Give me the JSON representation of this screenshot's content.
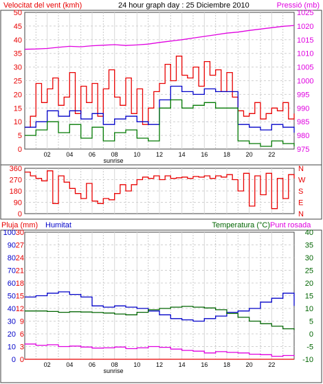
{
  "colors": {
    "wind": "#e80000",
    "gust": "#e80000",
    "wind_avg": "#0000c8",
    "wind_low": "#007800",
    "pressure": "#e000e0",
    "direction": "#e80000",
    "humidity": "#0000c8",
    "temperature": "#006400",
    "dewpoint": "#e000e0",
    "rain": "#e80000",
    "grid": "#c8c8c8",
    "frame": "#404040"
  },
  "header": {
    "wind_title": "Velocitat del vent (kmh)",
    "graph_title": "24 hour graph day : 25 Diciembre 2010",
    "pressure_title": "Pressió (mb)",
    "rain_title": "Pluja (mm)",
    "humidity_title": "Humitat",
    "temp_title": "Temperatura (°C)",
    "dew_title": "Punt rosada"
  },
  "chart_data": [
    {
      "type": "line",
      "id": "wind",
      "x_ticks": [
        "02",
        "04",
        "06",
        "08",
        "10",
        "12",
        "14",
        "16",
        "18",
        "20",
        "22"
      ],
      "sunrise_label": "sunrise",
      "sunrise_hour": 7.9,
      "ylim_left": [
        0,
        50
      ],
      "yticks_left": [
        0,
        5,
        10,
        15,
        20,
        25,
        30,
        35,
        40,
        45,
        50
      ],
      "ylim_right": [
        975,
        1025
      ],
      "yticks_right": [
        975,
        980,
        985,
        990,
        995,
        1000,
        1005,
        1010,
        1015,
        1020,
        1025
      ],
      "series": [
        {
          "key": "gust",
          "axis": "left",
          "hours": [
            0,
            0.5,
            1,
            1.5,
            2,
            2.5,
            3,
            3.5,
            4,
            4.5,
            5,
            5.5,
            6,
            6.5,
            7,
            7.5,
            8,
            8.5,
            9,
            9.5,
            10,
            10.5,
            11,
            11.5,
            12,
            12.5,
            13,
            13.5,
            14,
            14.5,
            15,
            15.5,
            16,
            16.5,
            17,
            17.5,
            18,
            18.5,
            19,
            19.5,
            20,
            20.5,
            21,
            21.5,
            22,
            22.5,
            23,
            23.5,
            24
          ],
          "values": [
            8,
            12,
            24,
            17,
            22,
            26,
            16,
            19,
            28,
            13,
            23,
            17,
            24,
            12,
            22,
            29,
            19,
            16,
            26,
            13,
            22,
            9,
            15,
            21,
            24,
            31,
            25,
            34,
            27,
            26,
            30,
            23,
            32,
            27,
            29,
            21,
            28,
            19,
            14,
            12,
            13,
            17,
            11,
            13,
            15,
            14,
            17,
            11,
            13
          ]
        },
        {
          "key": "wind_avg",
          "axis": "left",
          "hours": [
            0,
            1,
            2,
            3,
            4,
            5,
            6,
            7,
            8,
            9,
            10,
            11,
            12,
            13,
            14,
            15,
            16,
            17,
            18,
            19,
            20,
            21,
            22,
            23,
            24
          ],
          "values": [
            8,
            10,
            14,
            12,
            14,
            11,
            13,
            9,
            11,
            12,
            10,
            9,
            18,
            23,
            21,
            20,
            22,
            21,
            21,
            9,
            8,
            7,
            9,
            8,
            6
          ]
        },
        {
          "key": "wind_low",
          "axis": "left",
          "hours": [
            0,
            1,
            2,
            3,
            4,
            5,
            6,
            7,
            8,
            9,
            10,
            11,
            12,
            13,
            14,
            15,
            16,
            17,
            18,
            19,
            20,
            21,
            22,
            23,
            24
          ],
          "values": [
            5,
            7,
            10,
            6,
            9,
            4,
            8,
            3,
            6,
            7,
            4,
            3,
            15,
            18,
            15,
            16,
            17,
            15,
            15,
            3,
            2,
            1,
            3,
            2,
            1
          ]
        },
        {
          "key": "pressure",
          "axis": "right",
          "hours": [
            0,
            1,
            2,
            3,
            4,
            5,
            6,
            7,
            8,
            9,
            10,
            11,
            12,
            13,
            14,
            15,
            16,
            17,
            18,
            19,
            20,
            21,
            22,
            23,
            24
          ],
          "values": [
            1011.5,
            1011.6,
            1011.8,
            1012.2,
            1012.6,
            1012.4,
            1012.8,
            1013.0,
            1013.2,
            1012.9,
            1013.1,
            1013.4,
            1014.0,
            1014.5,
            1015.0,
            1015.6,
            1016.2,
            1016.8,
            1017.4,
            1017.8,
            1018.4,
            1018.9,
            1019.4,
            1019.9,
            1020.2
          ]
        }
      ]
    },
    {
      "type": "line",
      "id": "direction",
      "ylim_left": [
        0,
        360
      ],
      "yticks_left": [
        0,
        90,
        180,
        270,
        360
      ],
      "right_labels": [
        "N",
        "W",
        "S",
        "E",
        "N"
      ],
      "series": [
        {
          "key": "direction",
          "hours": [
            0,
            0.5,
            1,
            1.5,
            2,
            2.5,
            3,
            3.5,
            4,
            4.5,
            5,
            5.5,
            6,
            6.5,
            7,
            7.5,
            8,
            8.5,
            9,
            9.5,
            10,
            10.5,
            11,
            11.5,
            12,
            12.5,
            13,
            13.5,
            14,
            14.5,
            15,
            15.5,
            16,
            16.5,
            17,
            17.5,
            18,
            18.5,
            19,
            19.5,
            20,
            20.5,
            21,
            21.5,
            22,
            22.5,
            23,
            23.5,
            24
          ],
          "values": [
            330,
            300,
            280,
            260,
            340,
            80,
            300,
            250,
            200,
            160,
            120,
            240,
            100,
            80,
            120,
            110,
            160,
            230,
            180,
            230,
            270,
            290,
            280,
            300,
            270,
            300,
            280,
            285,
            290,
            280,
            295,
            290,
            300,
            280,
            300,
            290,
            310,
            270,
            180,
            320,
            60,
            300,
            150,
            320,
            40,
            280,
            120,
            310,
            280
          ]
        }
      ]
    },
    {
      "type": "line",
      "id": "humidity_temp",
      "x_ticks": [
        "02",
        "04",
        "06",
        "08",
        "10",
        "12",
        "14",
        "16",
        "18",
        "20",
        "22"
      ],
      "sunrise_label": "sunrise",
      "ylim_rain": [
        0,
        30
      ],
      "yticks_rain": [
        0,
        3,
        6,
        9,
        12,
        15,
        18,
        21,
        24,
        27,
        30
      ],
      "ylim_hum": [
        0,
        100
      ],
      "yticks_hum": [
        0,
        10,
        20,
        30,
        40,
        50,
        60,
        70,
        80,
        90,
        100
      ],
      "ylim_temp": [
        -10,
        40
      ],
      "yticks_temp": [
        -10,
        -5,
        0,
        5,
        10,
        15,
        20,
        25,
        30,
        35,
        40
      ],
      "series": [
        {
          "key": "humidity",
          "axis": "hum",
          "hours": [
            0,
            1,
            2,
            3,
            4,
            5,
            6,
            7,
            8,
            9,
            10,
            11,
            12,
            13,
            14,
            15,
            16,
            17,
            18,
            19,
            20,
            21,
            22,
            23,
            24
          ],
          "values": [
            49,
            50,
            52,
            53,
            51,
            49,
            42,
            41,
            42,
            41,
            40,
            38,
            35,
            32,
            31,
            30,
            32,
            34,
            37,
            38,
            40,
            45,
            48,
            52,
            42
          ]
        },
        {
          "key": "temperature",
          "axis": "temp",
          "hours": [
            0,
            1,
            2,
            3,
            4,
            5,
            6,
            7,
            8,
            9,
            10,
            11,
            12,
            13,
            14,
            15,
            16,
            17,
            18,
            19,
            20,
            21,
            22,
            23,
            24
          ],
          "values": [
            9,
            9,
            8.8,
            8.5,
            8.7,
            8.6,
            8.4,
            8.2,
            7.8,
            7.5,
            8.5,
            9.5,
            10,
            10.5,
            10.8,
            10.5,
            10.2,
            9.5,
            8,
            6.5,
            5,
            4,
            3,
            2,
            1.5
          ]
        },
        {
          "key": "dewpoint",
          "axis": "temp",
          "hours": [
            0,
            1,
            2,
            3,
            4,
            5,
            6,
            7,
            8,
            9,
            10,
            11,
            12,
            13,
            14,
            15,
            16,
            17,
            18,
            19,
            20,
            21,
            22,
            23,
            24
          ],
          "values": [
            -4,
            -4.5,
            -4.3,
            -5,
            -4.8,
            -5.2,
            -5.6,
            -5.5,
            -5.2,
            -5.8,
            -5.5,
            -5,
            -5.3,
            -6,
            -6.5,
            -6.8,
            -7.5,
            -7,
            -7.3,
            -7.5,
            -8,
            -8.2,
            -8.8,
            -8.5,
            -8.8
          ]
        },
        {
          "key": "rain",
          "axis": "rain",
          "hours": [
            0,
            24
          ],
          "values": [
            0,
            0
          ]
        }
      ]
    }
  ]
}
